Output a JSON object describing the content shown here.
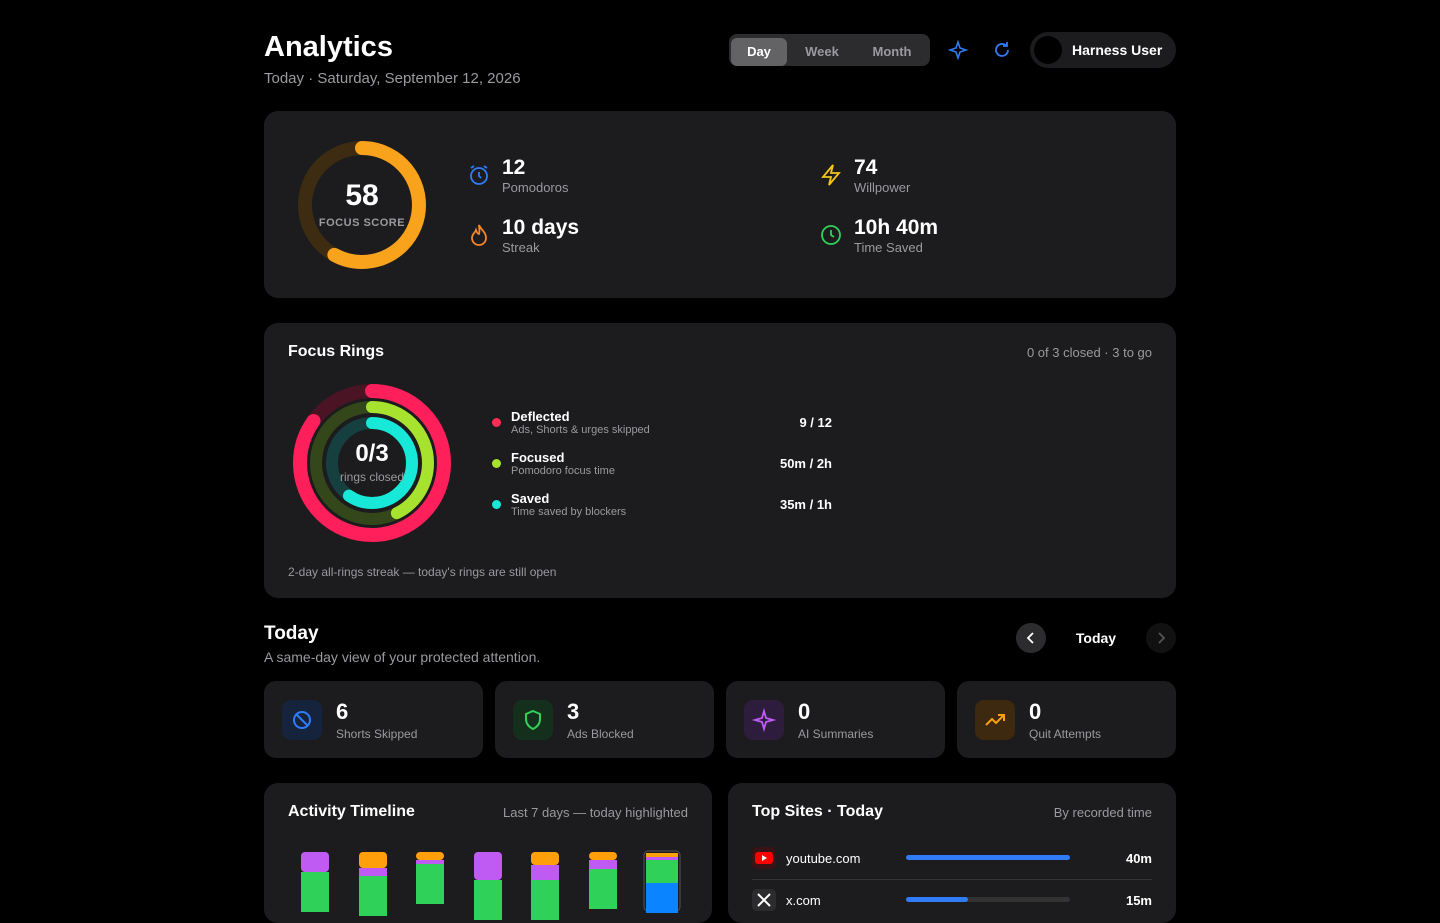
{
  "header": {
    "title": "Analytics",
    "subtitle": "Today · Saturday, September 12, 2026",
    "tabs": [
      "Day",
      "Week",
      "Month"
    ],
    "user": "Harness User"
  },
  "summary": {
    "focus_score": 58,
    "focus_score_label": "FOCUS SCORE",
    "stats": [
      {
        "value": 12,
        "label": "Pomodoros"
      },
      {
        "value": 74,
        "label": "Willpower"
      },
      {
        "value": "10 days",
        "label": "Streak"
      },
      {
        "value": "10h 40m",
        "label": "Time Saved"
      }
    ]
  },
  "focus_rings": {
    "title": "Focus Rings",
    "status": "0 of 3 closed · 3 to go",
    "center_value": "0/3",
    "center_label": "rings closed",
    "rings": [
      {
        "name": "Deflected",
        "description": "Ads, Shorts & urges skipped",
        "progress": "9 / 12"
      },
      {
        "name": "Focused",
        "description": "Pomodoro focus time",
        "progress": "50m / 2h"
      },
      {
        "name": "Saved",
        "description": "Time saved by blockers",
        "progress": "35m / 1h"
      }
    ],
    "footer": "2-day all-rings streak — today's rings are still open"
  },
  "today": {
    "title": "Today",
    "subtitle": "A same-day view of your protected attention.",
    "nav_label": "Today",
    "cards": [
      {
        "value": 6,
        "label": "Shorts Skipped"
      },
      {
        "value": 3,
        "label": "Ads Blocked"
      },
      {
        "value": 0,
        "label": "AI Summaries"
      },
      {
        "value": 0,
        "label": "Quit Attempts"
      }
    ]
  },
  "activity_timeline": {
    "title": "Activity Timeline",
    "subtitle": "Last 7 days — today highlighted"
  },
  "top_sites": {
    "title": "Top Sites · Today",
    "subtitle": "By recorded time",
    "sites": [
      {
        "name": "youtube.com",
        "time": "40m"
      },
      {
        "name": "x.com",
        "time": "15m"
      }
    ]
  }
}
